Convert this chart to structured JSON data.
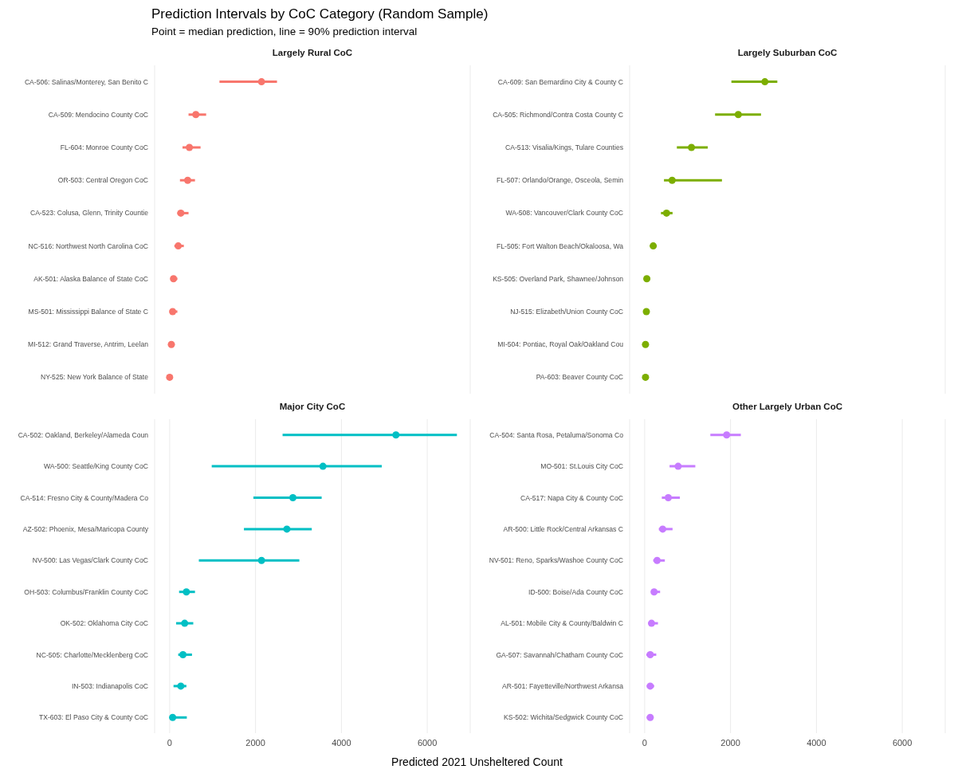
{
  "chart_data": [
    {
      "type": "scatter",
      "title": "Prediction Intervals by CoC Category (Random Sample)",
      "subtitle": "Point = median prediction, line = 90% prediction interval",
      "annotations": [
        "Largely Rural CoC"
      ],
      "categories": [
        "CA-506: Salinas/Monterey, San Benito C",
        "CA-509: Mendocino County CoC",
        "FL-604: Monroe County CoC",
        "OR-503: Central Oregon CoC",
        "CA-523: Colusa, Glenn, Trinity Countie",
        "NC-516: Northwest North Carolina CoC",
        "AK-501: Alaska Balance of State CoC",
        "MS-501: Mississippi Balance of State C",
        "MI-512: Grand Traverse, Antrim, Leelan",
        "NY-525: New York Balance of State"
      ],
      "series": [
        {
          "color": "#f8766d",
          "values": [
            2140,
            610,
            460,
            420,
            260,
            200,
            90,
            70,
            40,
            0
          ],
          "errors": [
            [
              1160,
              2500
            ],
            [
              440,
              850
            ],
            [
              300,
              720
            ],
            [
              240,
              590
            ],
            [
              180,
              440
            ],
            [
              110,
              330
            ],
            [
              20,
              180
            ],
            [
              0,
              180
            ],
            [
              0,
              110
            ],
            [
              0,
              70
            ]
          ]
        }
      ],
      "orientation": "horizontal",
      "xlim": [
        -350,
        7000
      ],
      "xticks": [
        0,
        2000,
        4000,
        6000
      ],
      "grid": "x",
      "marker": "circle",
      "tick_labels": "y"
    },
    {
      "type": "scatter",
      "annotations": [
        "Largely Suburban CoC"
      ],
      "categories": [
        "CA-609: San Bernardino City & County C",
        "CA-505: Richmond/Contra Costa County C",
        "CA-513: Visalia/Kings, Tulare Counties",
        "FL-507: Orlando/Orange, Osceola, Semin",
        "WA-508: Vancouver/Clark County CoC",
        "FL-505: Fort Walton Beach/Okaloosa, Wa",
        "KS-505: Overland Park, Shawnee/Johnson",
        "NJ-515: Elizabeth/Union County CoC",
        "MI-504: Pontiac, Royal Oak/Oakland Cou",
        "PA-603: Beaver County CoC"
      ],
      "series": [
        {
          "color": "#7cae00",
          "values": [
            2800,
            2180,
            1090,
            640,
            510,
            200,
            50,
            40,
            20,
            20
          ],
          "errors": [
            [
              2020,
              3090
            ],
            [
              1640,
              2710
            ],
            [
              750,
              1470
            ],
            [
              450,
              1800
            ],
            [
              380,
              650
            ],
            [
              130,
              270
            ],
            [
              0,
              130
            ],
            [
              0,
              110
            ],
            [
              0,
              90
            ],
            [
              0,
              80
            ]
          ]
        }
      ],
      "orientation": "horizontal",
      "xlim": [
        -350,
        7000
      ],
      "xticks": [
        0,
        2000,
        4000,
        6000
      ],
      "grid": "x",
      "marker": "circle",
      "tick_labels": "y"
    },
    {
      "type": "scatter",
      "annotations": [
        "Major City CoC"
      ],
      "xlabel": "Predicted 2021 Unsheltered Count",
      "categories": [
        "CA-502: Oakland, Berkeley/Alameda Coun",
        "WA-500: Seattle/King County CoC",
        "CA-514: Fresno City & County/Madera Co",
        "AZ-502: Phoenix, Mesa/Maricopa County",
        "NV-500: Las Vegas/Clark County CoC",
        "OH-503: Columbus/Franklin County CoC",
        "OK-502: Oklahoma City CoC",
        "NC-505: Charlotte/Mecklenberg CoC",
        "IN-503: Indianapolis CoC",
        "TX-603: El Paso City & County CoC"
      ],
      "series": [
        {
          "color": "#00bfc4",
          "values": [
            5270,
            3570,
            2870,
            2730,
            2140,
            390,
            350,
            310,
            260,
            70
          ],
          "errors": [
            [
              2630,
              6690
            ],
            [
              980,
              4940
            ],
            [
              1950,
              3540
            ],
            [
              1730,
              3310
            ],
            [
              680,
              3020
            ],
            [
              220,
              590
            ],
            [
              150,
              550
            ],
            [
              200,
              520
            ],
            [
              90,
              390
            ],
            [
              0,
              400
            ]
          ]
        }
      ],
      "orientation": "horizontal",
      "xlim": [
        -350,
        7000
      ],
      "xticks": [
        0,
        2000,
        4000,
        6000
      ],
      "grid": "x",
      "marker": "circle"
    },
    {
      "type": "scatter",
      "annotations": [
        "Other Largely Urban CoC"
      ],
      "categories": [
        "CA-504: Santa Rosa, Petaluma/Sonoma Co",
        "MO-501: St.Louis City CoC",
        "CA-517: Napa City & County CoC",
        "AR-500: Little Rock/Central Arkansas C",
        "NV-501: Reno, Sparks/Washoe County CoC",
        "ID-500: Boise/Ada County CoC",
        "AL-501: Mobile City & County/Baldwin C",
        "GA-507: Savannah/Chatham County CoC",
        "AR-501: Fayetteville/Northwest Arkansa",
        "KS-502: Wichita/Sedgwick County CoC"
      ],
      "series": [
        {
          "color": "#c77cff",
          "values": [
            1910,
            780,
            550,
            420,
            290,
            220,
            160,
            130,
            130,
            130
          ],
          "errors": [
            [
              1530,
              2240
            ],
            [
              580,
              1180
            ],
            [
              400,
              820
            ],
            [
              330,
              650
            ],
            [
              200,
              470
            ],
            [
              150,
              360
            ],
            [
              90,
              310
            ],
            [
              40,
              270
            ],
            [
              50,
              220
            ],
            [
              50,
              200
            ]
          ]
        }
      ],
      "orientation": "horizontal",
      "xlim": [
        -350,
        7000
      ],
      "xticks": [
        0,
        2000,
        4000,
        6000
      ],
      "grid": "x",
      "marker": "circle"
    }
  ]
}
